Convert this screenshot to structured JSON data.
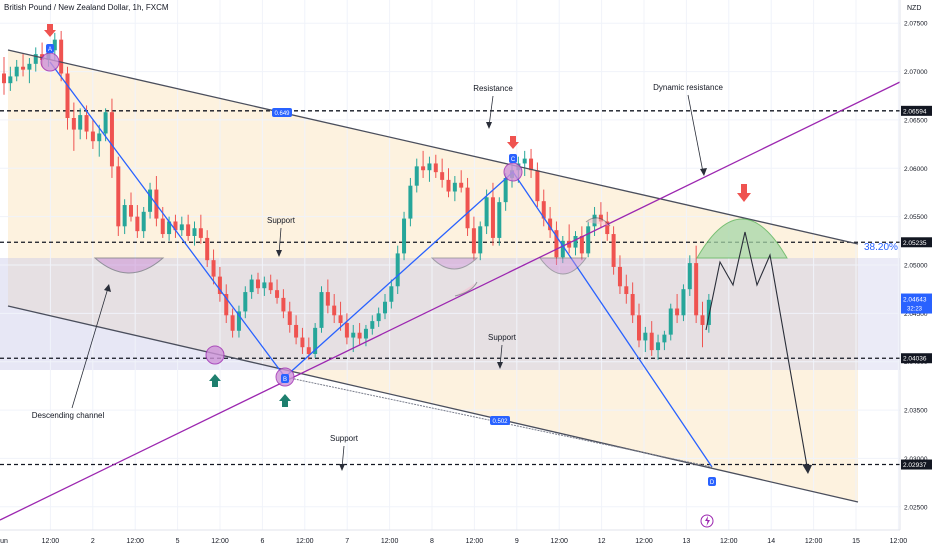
{
  "header": {
    "title": "British Pound / New Zealand Dollar, 1h, FXCM",
    "currency": "NZD"
  },
  "chart_data": {
    "type": "candlestick",
    "x_ticks": [
      "un",
      "12:00",
      "2",
      "12:00",
      "5",
      "12:00",
      "6",
      "12:00",
      "7",
      "12:00",
      "8",
      "12:00",
      "9",
      "12:00",
      "12",
      "12:00",
      "13",
      "12:00",
      "14",
      "12:00",
      "15",
      "12:00"
    ],
    "y_ticks": [
      "2.07500",
      "2.07000",
      "2.06500",
      "2.06000",
      "2.05500",
      "2.05000",
      "2.04500",
      "2.04000",
      "2.03500",
      "2.03000",
      "2.02500"
    ],
    "ylim": [
      2.0226,
      2.0774
    ],
    "price_levels": [
      {
        "value": 2.06594,
        "label": "2.06594"
      },
      {
        "value": 2.05235,
        "label": "2.05235"
      },
      {
        "value": 2.04036,
        "label": "2.04036"
      },
      {
        "value": 2.02937,
        "label": "2.02937"
      }
    ],
    "current_price": {
      "value": 2.04643,
      "label": "2.04643",
      "countdown": "32:23"
    },
    "fib_label": "38.20%",
    "trendline_labels": [
      "0.649",
      "0.502"
    ],
    "points": [
      "A",
      "B",
      "C",
      "D"
    ],
    "annotations": [
      "Resistance",
      "Dynamic resistance",
      "Support",
      "Support",
      "Support",
      "Descending channel"
    ],
    "bull_color": "#26a69a",
    "bear_color": "#ef5350",
    "accent_color": "#2962ff",
    "candles": [
      [
        2.0698,
        2.0715,
        2.0676,
        2.0688
      ],
      [
        2.0688,
        2.0705,
        2.068,
        2.0695
      ],
      [
        2.0695,
        2.0712,
        2.069,
        2.0705
      ],
      [
        2.0705,
        2.0718,
        2.0695,
        2.0702
      ],
      [
        2.0702,
        2.0714,
        2.0688,
        2.0708
      ],
      [
        2.0708,
        2.0725,
        2.07,
        2.0718
      ],
      [
        2.0718,
        2.073,
        2.0705,
        2.0712
      ],
      [
        2.0712,
        2.0728,
        2.0705,
        2.0722
      ],
      [
        2.0722,
        2.074,
        2.0712,
        2.0733
      ],
      [
        2.0733,
        2.0742,
        2.069,
        2.0698
      ],
      [
        2.0698,
        2.0705,
        2.064,
        2.0652
      ],
      [
        2.0652,
        2.0668,
        2.0618,
        2.064
      ],
      [
        2.064,
        2.0662,
        2.063,
        2.0655
      ],
      [
        2.0655,
        2.0665,
        2.063,
        2.0638
      ],
      [
        2.0638,
        2.065,
        2.062,
        2.0628
      ],
      [
        2.0628,
        2.0645,
        2.0612,
        2.0636
      ],
      [
        2.0636,
        2.0662,
        2.0628,
        2.0658
      ],
      [
        2.0658,
        2.0672,
        2.059,
        2.0602
      ],
      [
        2.0602,
        2.0612,
        2.053,
        2.054
      ],
      [
        2.054,
        2.0568,
        2.0532,
        2.0562
      ],
      [
        2.0562,
        2.0575,
        2.0545,
        2.055
      ],
      [
        2.055,
        2.0562,
        2.0528,
        2.0535
      ],
      [
        2.0535,
        2.056,
        2.0528,
        2.0555
      ],
      [
        2.0555,
        2.0585,
        2.0548,
        2.0578
      ],
      [
        2.0578,
        2.0592,
        2.054,
        2.0548
      ],
      [
        2.0548,
        2.056,
        2.0528,
        2.0532
      ],
      [
        2.0532,
        2.055,
        2.0525,
        2.0545
      ],
      [
        2.0545,
        2.0552,
        2.0528,
        2.0536
      ],
      [
        2.0536,
        2.055,
        2.053,
        2.0542
      ],
      [
        2.0542,
        2.0552,
        2.0525,
        2.053
      ],
      [
        2.053,
        2.0545,
        2.052,
        2.0538
      ],
      [
        2.0538,
        2.0552,
        2.0522,
        2.0528
      ],
      [
        2.0528,
        2.0536,
        2.0498,
        2.0505
      ],
      [
        2.0505,
        2.0516,
        2.048,
        2.0488
      ],
      [
        2.0488,
        2.0498,
        2.0462,
        2.047
      ],
      [
        2.047,
        2.048,
        2.044,
        2.0448
      ],
      [
        2.0448,
        2.0455,
        2.0425,
        2.0432
      ],
      [
        2.0432,
        2.0458,
        2.0425,
        2.0452
      ],
      [
        2.0452,
        2.0478,
        2.0445,
        2.0472
      ],
      [
        2.0472,
        2.049,
        2.0465,
        2.0485
      ],
      [
        2.0485,
        2.0492,
        2.047,
        2.0476
      ],
      [
        2.0476,
        2.0488,
        2.0468,
        2.0482
      ],
      [
        2.0482,
        2.049,
        2.047,
        2.0474
      ],
      [
        2.0474,
        2.0485,
        2.046,
        2.0466
      ],
      [
        2.0466,
        2.0475,
        2.0445,
        2.0452
      ],
      [
        2.0452,
        2.0462,
        2.043,
        2.0438
      ],
      [
        2.0438,
        2.0448,
        2.0418,
        2.0425
      ],
      [
        2.0425,
        2.0435,
        2.0408,
        2.0415
      ],
      [
        2.0415,
        2.0425,
        2.0402,
        2.0408
      ],
      [
        2.0408,
        2.044,
        2.0404,
        2.0435
      ],
      [
        2.0435,
        2.0478,
        2.043,
        2.0472
      ],
      [
        2.0472,
        2.0485,
        2.045,
        2.0458
      ],
      [
        2.0458,
        2.047,
        2.044,
        2.0448
      ],
      [
        2.0448,
        2.0462,
        2.0432,
        2.044
      ],
      [
        2.044,
        2.045,
        2.0418,
        2.0425
      ],
      [
        2.0425,
        2.0438,
        2.041,
        2.043
      ],
      [
        2.043,
        2.044,
        2.0418,
        2.0424
      ],
      [
        2.0424,
        2.0438,
        2.0416,
        2.0434
      ],
      [
        2.0434,
        2.0448,
        2.0428,
        2.0442
      ],
      [
        2.0442,
        2.0456,
        2.0436,
        2.045
      ],
      [
        2.045,
        2.047,
        2.0444,
        2.0462
      ],
      [
        2.0462,
        2.0485,
        2.0455,
        2.0478
      ],
      [
        2.0478,
        2.052,
        2.047,
        2.0512
      ],
      [
        2.0512,
        2.0555,
        2.0505,
        2.0548
      ],
      [
        2.0548,
        2.059,
        2.054,
        2.0582
      ],
      [
        2.0582,
        2.061,
        2.0575,
        2.0602
      ],
      [
        2.0602,
        2.0618,
        2.059,
        2.0598
      ],
      [
        2.0598,
        2.0612,
        2.0586,
        2.0605
      ],
      [
        2.0605,
        2.0614,
        2.059,
        2.0596
      ],
      [
        2.0596,
        2.061,
        2.058,
        2.0588
      ],
      [
        2.0588,
        2.06,
        2.057,
        2.0576
      ],
      [
        2.0576,
        2.0592,
        2.0566,
        2.0585
      ],
      [
        2.0585,
        2.0598,
        2.0575,
        2.058
      ],
      [
        2.058,
        2.059,
        2.053,
        2.0538
      ],
      [
        2.0538,
        2.055,
        2.0505,
        2.0512
      ],
      [
        2.0512,
        2.0545,
        2.0505,
        2.054
      ],
      [
        2.054,
        2.0578,
        2.0532,
        2.057
      ],
      [
        2.057,
        2.0585,
        2.052,
        2.0528
      ],
      [
        2.0528,
        2.057,
        2.052,
        2.0565
      ],
      [
        2.0565,
        2.0595,
        2.0556,
        2.059
      ],
      [
        2.059,
        2.0605,
        2.058,
        2.0598
      ],
      [
        2.0598,
        2.0612,
        2.0585,
        2.0605
      ],
      [
        2.0605,
        2.0618,
        2.0592,
        2.061
      ],
      [
        2.061,
        2.062,
        2.059,
        2.0598
      ],
      [
        2.0598,
        2.0606,
        2.056,
        2.0566
      ],
      [
        2.0566,
        2.0578,
        2.054,
        2.0548
      ],
      [
        2.0548,
        2.056,
        2.0528,
        2.0536
      ],
      [
        2.0536,
        2.0545,
        2.05,
        2.0508
      ],
      [
        2.0508,
        2.053,
        2.0502,
        2.0525
      ],
      [
        2.0525,
        2.0542,
        2.0512,
        2.0518
      ],
      [
        2.0518,
        2.0535,
        2.051,
        2.053
      ],
      [
        2.053,
        2.054,
        2.0505,
        2.0512
      ],
      [
        2.0512,
        2.0545,
        2.0508,
        2.054
      ],
      [
        2.054,
        2.056,
        2.053,
        2.0552
      ],
      [
        2.0552,
        2.0565,
        2.0538,
        2.0545
      ],
      [
        2.0545,
        2.0555,
        2.0525,
        2.0532
      ],
      [
        2.0532,
        2.054,
        2.049,
        2.0498
      ],
      [
        2.0498,
        2.051,
        2.047,
        2.0478
      ],
      [
        2.0478,
        2.049,
        2.046,
        2.047
      ],
      [
        2.047,
        2.0482,
        2.044,
        2.0448
      ],
      [
        2.0448,
        2.046,
        2.0415,
        2.0422
      ],
      [
        2.0422,
        2.0436,
        2.041,
        2.043
      ],
      [
        2.043,
        2.0442,
        2.0406,
        2.0412
      ],
      [
        2.0412,
        2.0428,
        2.0402,
        2.042
      ],
      [
        2.042,
        2.0432,
        2.0412,
        2.0428
      ],
      [
        2.0428,
        2.046,
        2.0422,
        2.0455
      ],
      [
        2.0455,
        2.047,
        2.044,
        2.0448
      ],
      [
        2.0448,
        2.048,
        2.0442,
        2.0475
      ],
      [
        2.0475,
        2.051,
        2.0468,
        2.0502
      ],
      [
        2.0502,
        2.052,
        2.044,
        2.0448
      ],
      [
        2.0448,
        2.0462,
        2.0415,
        2.0438
      ],
      [
        2.0438,
        2.047,
        2.043,
        2.0464
      ]
    ]
  }
}
